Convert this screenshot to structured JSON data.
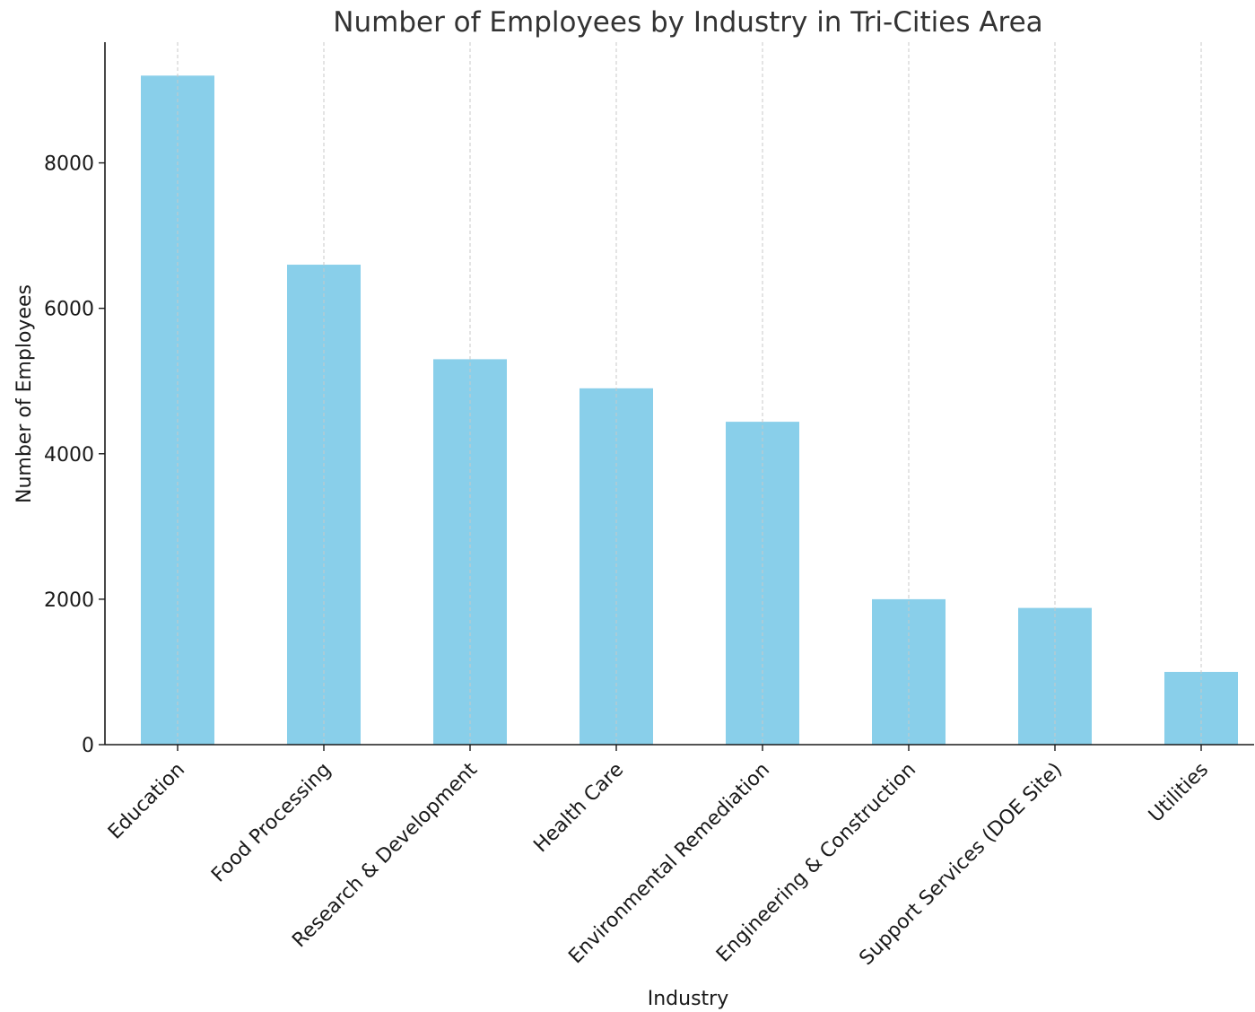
{
  "chart_data": {
    "type": "bar",
    "title": "Number of Employees by Industry in Tri-Cities Area",
    "xlabel": "Industry",
    "ylabel": "Number of Employees",
    "categories": [
      "Education",
      "Food Processing",
      "Research & Development",
      "Health Care",
      "Environmental Remediation",
      "Engineering & Construction",
      "Support Services (DOE Site)",
      "Utilities"
    ],
    "values": [
      9200,
      6600,
      5300,
      4900,
      4440,
      2000,
      1880,
      1000
    ],
    "yticks": [
      0,
      2000,
      4000,
      6000,
      8000
    ],
    "ylim": [
      0,
      9660
    ],
    "grid": "vertical dashed",
    "bar_color": "#89CFEA",
    "x_tick_rotation": 45
  }
}
